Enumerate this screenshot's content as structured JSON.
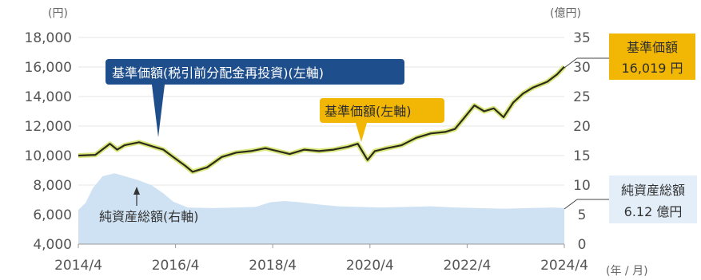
{
  "chart_data": {
    "type": "line",
    "left_unit": "(円)",
    "right_unit": "(億円)",
    "x_unit": "(年 / 月)",
    "x_ticks": [
      "2014/4",
      "2016/4",
      "2018/4",
      "2020/4",
      "2022/4",
      "2024/4"
    ],
    "y_left_ticks": [
      "4,000",
      "6,000",
      "8,000",
      "10,000",
      "12,000",
      "14,000",
      "16,000",
      "18,000"
    ],
    "y_right_ticks": [
      "0",
      "5",
      "10",
      "15",
      "20",
      "25",
      "30",
      "35"
    ],
    "ylim_left": [
      4000,
      18000
    ],
    "ylim_right": [
      0,
      35
    ],
    "xlim": [
      2014.25,
      2024.25
    ],
    "colors": {
      "nav_line": "#2e2a1c",
      "nav_glow": "#d8e87a",
      "area": "#cfe2f3",
      "navy": "#1f4e8c",
      "gold": "#f2b705",
      "pale_blue": "#e3eef9"
    },
    "series": [
      {
        "name": "基準価額(税引前分配金再投資)",
        "axis": "left",
        "x": [
          2014.25,
          2014.6,
          2014.9,
          2015.05,
          2015.2,
          2015.5,
          2015.8,
          2016.0,
          2016.2,
          2016.45,
          2016.6,
          2016.9,
          2017.2,
          2017.5,
          2017.8,
          2018.1,
          2018.35,
          2018.6,
          2018.9,
          2019.2,
          2019.5,
          2019.8,
          2020.0,
          2020.2,
          2020.35,
          2020.6,
          2020.9,
          2021.2,
          2021.5,
          2021.8,
          2022.0,
          2022.2,
          2022.4,
          2022.6,
          2022.8,
          2023.0,
          2023.2,
          2023.4,
          2023.6,
          2023.9,
          2024.1,
          2024.25
        ],
        "y": [
          10000,
          10050,
          10800,
          10400,
          10700,
          10900,
          10600,
          10400,
          9900,
          9300,
          8900,
          9200,
          9900,
          10200,
          10300,
          10500,
          10300,
          10100,
          10400,
          10300,
          10400,
          10600,
          10800,
          9700,
          10300,
          10500,
          10700,
          11200,
          11500,
          11600,
          11800,
          12600,
          13400,
          13000,
          13200,
          12600,
          13600,
          14200,
          14600,
          15000,
          15500,
          16019
        ]
      },
      {
        "name": "基準価額",
        "axis": "left",
        "x": [
          2014.25,
          2014.6,
          2014.9,
          2015.05,
          2015.2,
          2015.5,
          2015.8,
          2016.0,
          2016.2,
          2016.45,
          2016.6,
          2016.9,
          2017.2,
          2017.5,
          2017.8,
          2018.1,
          2018.35,
          2018.6,
          2018.9,
          2019.2,
          2019.5,
          2019.8,
          2020.0,
          2020.2,
          2020.35,
          2020.6,
          2020.9,
          2021.2,
          2021.5,
          2021.8,
          2022.0,
          2022.2,
          2022.4,
          2022.6,
          2022.8,
          2023.0,
          2023.2,
          2023.4,
          2023.6,
          2023.9,
          2024.1,
          2024.25
        ],
        "y": [
          10000,
          10050,
          10800,
          10400,
          10700,
          10900,
          10600,
          10400,
          9900,
          9300,
          8900,
          9200,
          9900,
          10200,
          10300,
          10500,
          10300,
          10100,
          10400,
          10300,
          10400,
          10600,
          10800,
          9700,
          10300,
          10500,
          10700,
          11200,
          11500,
          11600,
          11800,
          12600,
          13400,
          13000,
          13200,
          12600,
          13600,
          14200,
          14600,
          15000,
          15500,
          16019
        ]
      },
      {
        "name": "純資産総額",
        "axis": "right",
        "type": "area",
        "x": [
          2014.25,
          2014.4,
          2014.55,
          2014.75,
          2015.0,
          2015.25,
          2015.5,
          2015.75,
          2016.0,
          2016.2,
          2016.5,
          2017.0,
          2017.5,
          2017.9,
          2018.2,
          2018.5,
          2018.8,
          2019.2,
          2019.6,
          2020.0,
          2020.5,
          2021.0,
          2021.5,
          2022.0,
          2022.5,
          2023.0,
          2023.5,
          2024.0,
          2024.25
        ],
        "y": [
          5.8,
          7.0,
          9.5,
          11.5,
          12.0,
          11.4,
          10.8,
          10.0,
          8.6,
          7.2,
          6.2,
          6.1,
          6.2,
          6.3,
          7.1,
          7.3,
          7.1,
          6.7,
          6.4,
          6.3,
          6.2,
          6.3,
          6.4,
          6.2,
          6.1,
          6.0,
          6.1,
          6.2,
          6.12
        ]
      }
    ],
    "annotations": {
      "reinvest_label": "基準価額(税引前分配金再投資)(左軸)",
      "nav_label": "基準価額(左軸)",
      "aum_label": "純資産総額(右軸)",
      "latest_nav_title": "基準価額",
      "latest_nav_value": "16,019 円",
      "latest_aum_title": "純資産総額",
      "latest_aum_value": "6.12 億円"
    }
  }
}
